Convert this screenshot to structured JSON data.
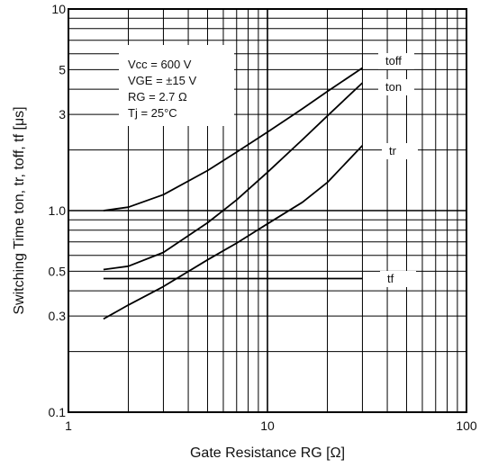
{
  "chart_data": {
    "type": "line",
    "title": "",
    "xlabel": "Gate Resistance RG [Ω]",
    "ylabel": "Switching Time ton, tr, toff, tf [μs]",
    "xscale": "log",
    "yscale": "log",
    "xlim": [
      1,
      100
    ],
    "ylim": [
      0.1,
      10
    ],
    "grid": true,
    "x_ticks": [
      {
        "value": 1,
        "label": "1"
      },
      {
        "value": 10,
        "label": "10"
      },
      {
        "value": 100,
        "label": "100"
      }
    ],
    "y_ticks": [
      {
        "value": 0.1,
        "label": "0.1"
      },
      {
        "value": 0.3,
        "label": "0.3"
      },
      {
        "value": 0.5,
        "label": "0.5"
      },
      {
        "value": 1,
        "label": "1.0"
      },
      {
        "value": 3,
        "label": "3"
      },
      {
        "value": 5,
        "label": "5"
      },
      {
        "value": 10,
        "label": "10"
      }
    ],
    "conditions": [
      "Vcc = 600 V",
      "VGE = ±15 V",
      "RG = 2.7 Ω",
      "Tj = 25°C"
    ],
    "series": [
      {
        "name": "toff",
        "x": [
          1.5,
          2,
          3,
          5,
          7,
          10,
          15,
          20,
          30
        ],
        "y": [
          1.0,
          1.04,
          1.2,
          1.58,
          1.95,
          2.45,
          3.2,
          3.9,
          5.1
        ]
      },
      {
        "name": "ton",
        "x": [
          1.5,
          2,
          3,
          5,
          7,
          10,
          15,
          20,
          30
        ],
        "y": [
          0.51,
          0.53,
          0.62,
          0.87,
          1.13,
          1.55,
          2.25,
          2.95,
          4.3
        ]
      },
      {
        "name": "tr",
        "x": [
          1.5,
          2,
          3,
          5,
          7,
          10,
          15,
          20,
          30
        ],
        "y": [
          0.29,
          0.34,
          0.42,
          0.57,
          0.69,
          0.86,
          1.1,
          1.38,
          2.1
        ]
      },
      {
        "name": "tf",
        "x": [
          1.5,
          30
        ],
        "y": [
          0.46,
          0.46
        ]
      }
    ]
  }
}
